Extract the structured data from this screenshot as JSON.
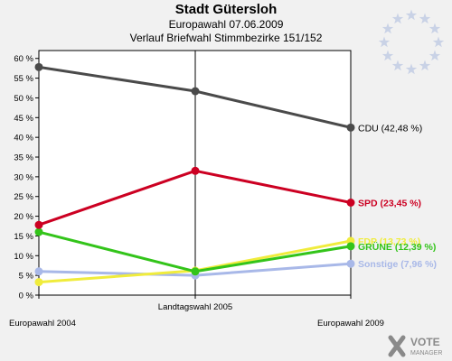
{
  "header": {
    "title": "Stadt Gütersloh",
    "subtitle1": "Europawahl 07.06.2009",
    "subtitle2": "Verlauf Briefwahl Stimmbezirke 151/152"
  },
  "logo": {
    "line1": "VOTE",
    "line2": "MANAGER"
  },
  "decor": {
    "stars_icon": "eu-stars-icon",
    "logo_icon": "votemanager-logo-icon"
  },
  "chart_data": {
    "type": "line",
    "categories": [
      "Europawahl 2004",
      "Landtagswahl 2005",
      "Europawahl 2009"
    ],
    "ylim": [
      0,
      62
    ],
    "yticks": [
      0,
      5,
      10,
      15,
      20,
      25,
      30,
      35,
      40,
      45,
      50,
      55,
      60
    ],
    "ytick_suffix": " %",
    "grid": false,
    "legend": "end-of-line labels",
    "series": [
      {
        "name": "CDU",
        "end_label": "CDU (42,48 %)",
        "color": "#4a4a4a",
        "values": [
          57.8,
          51.7,
          42.48
        ]
      },
      {
        "name": "SPD",
        "end_label": "SPD (23,45 %)",
        "color": "#cc0022",
        "values": [
          17.8,
          31.5,
          23.45
        ]
      },
      {
        "name": "FDP",
        "end_label": "FDP (13,73 %)",
        "color": "#f0ec3c",
        "values": [
          3.3,
          6.2,
          13.73
        ]
      },
      {
        "name": "GRÜNE",
        "end_label": "GRÜNE (12,39 %)",
        "color": "#33c41a",
        "values": [
          16.0,
          6.0,
          12.39
        ]
      },
      {
        "name": "Sonstige",
        "end_label": "Sonstige (7,96 %)",
        "color": "#a8b8e8",
        "values": [
          6.0,
          5.0,
          7.96
        ]
      }
    ]
  }
}
